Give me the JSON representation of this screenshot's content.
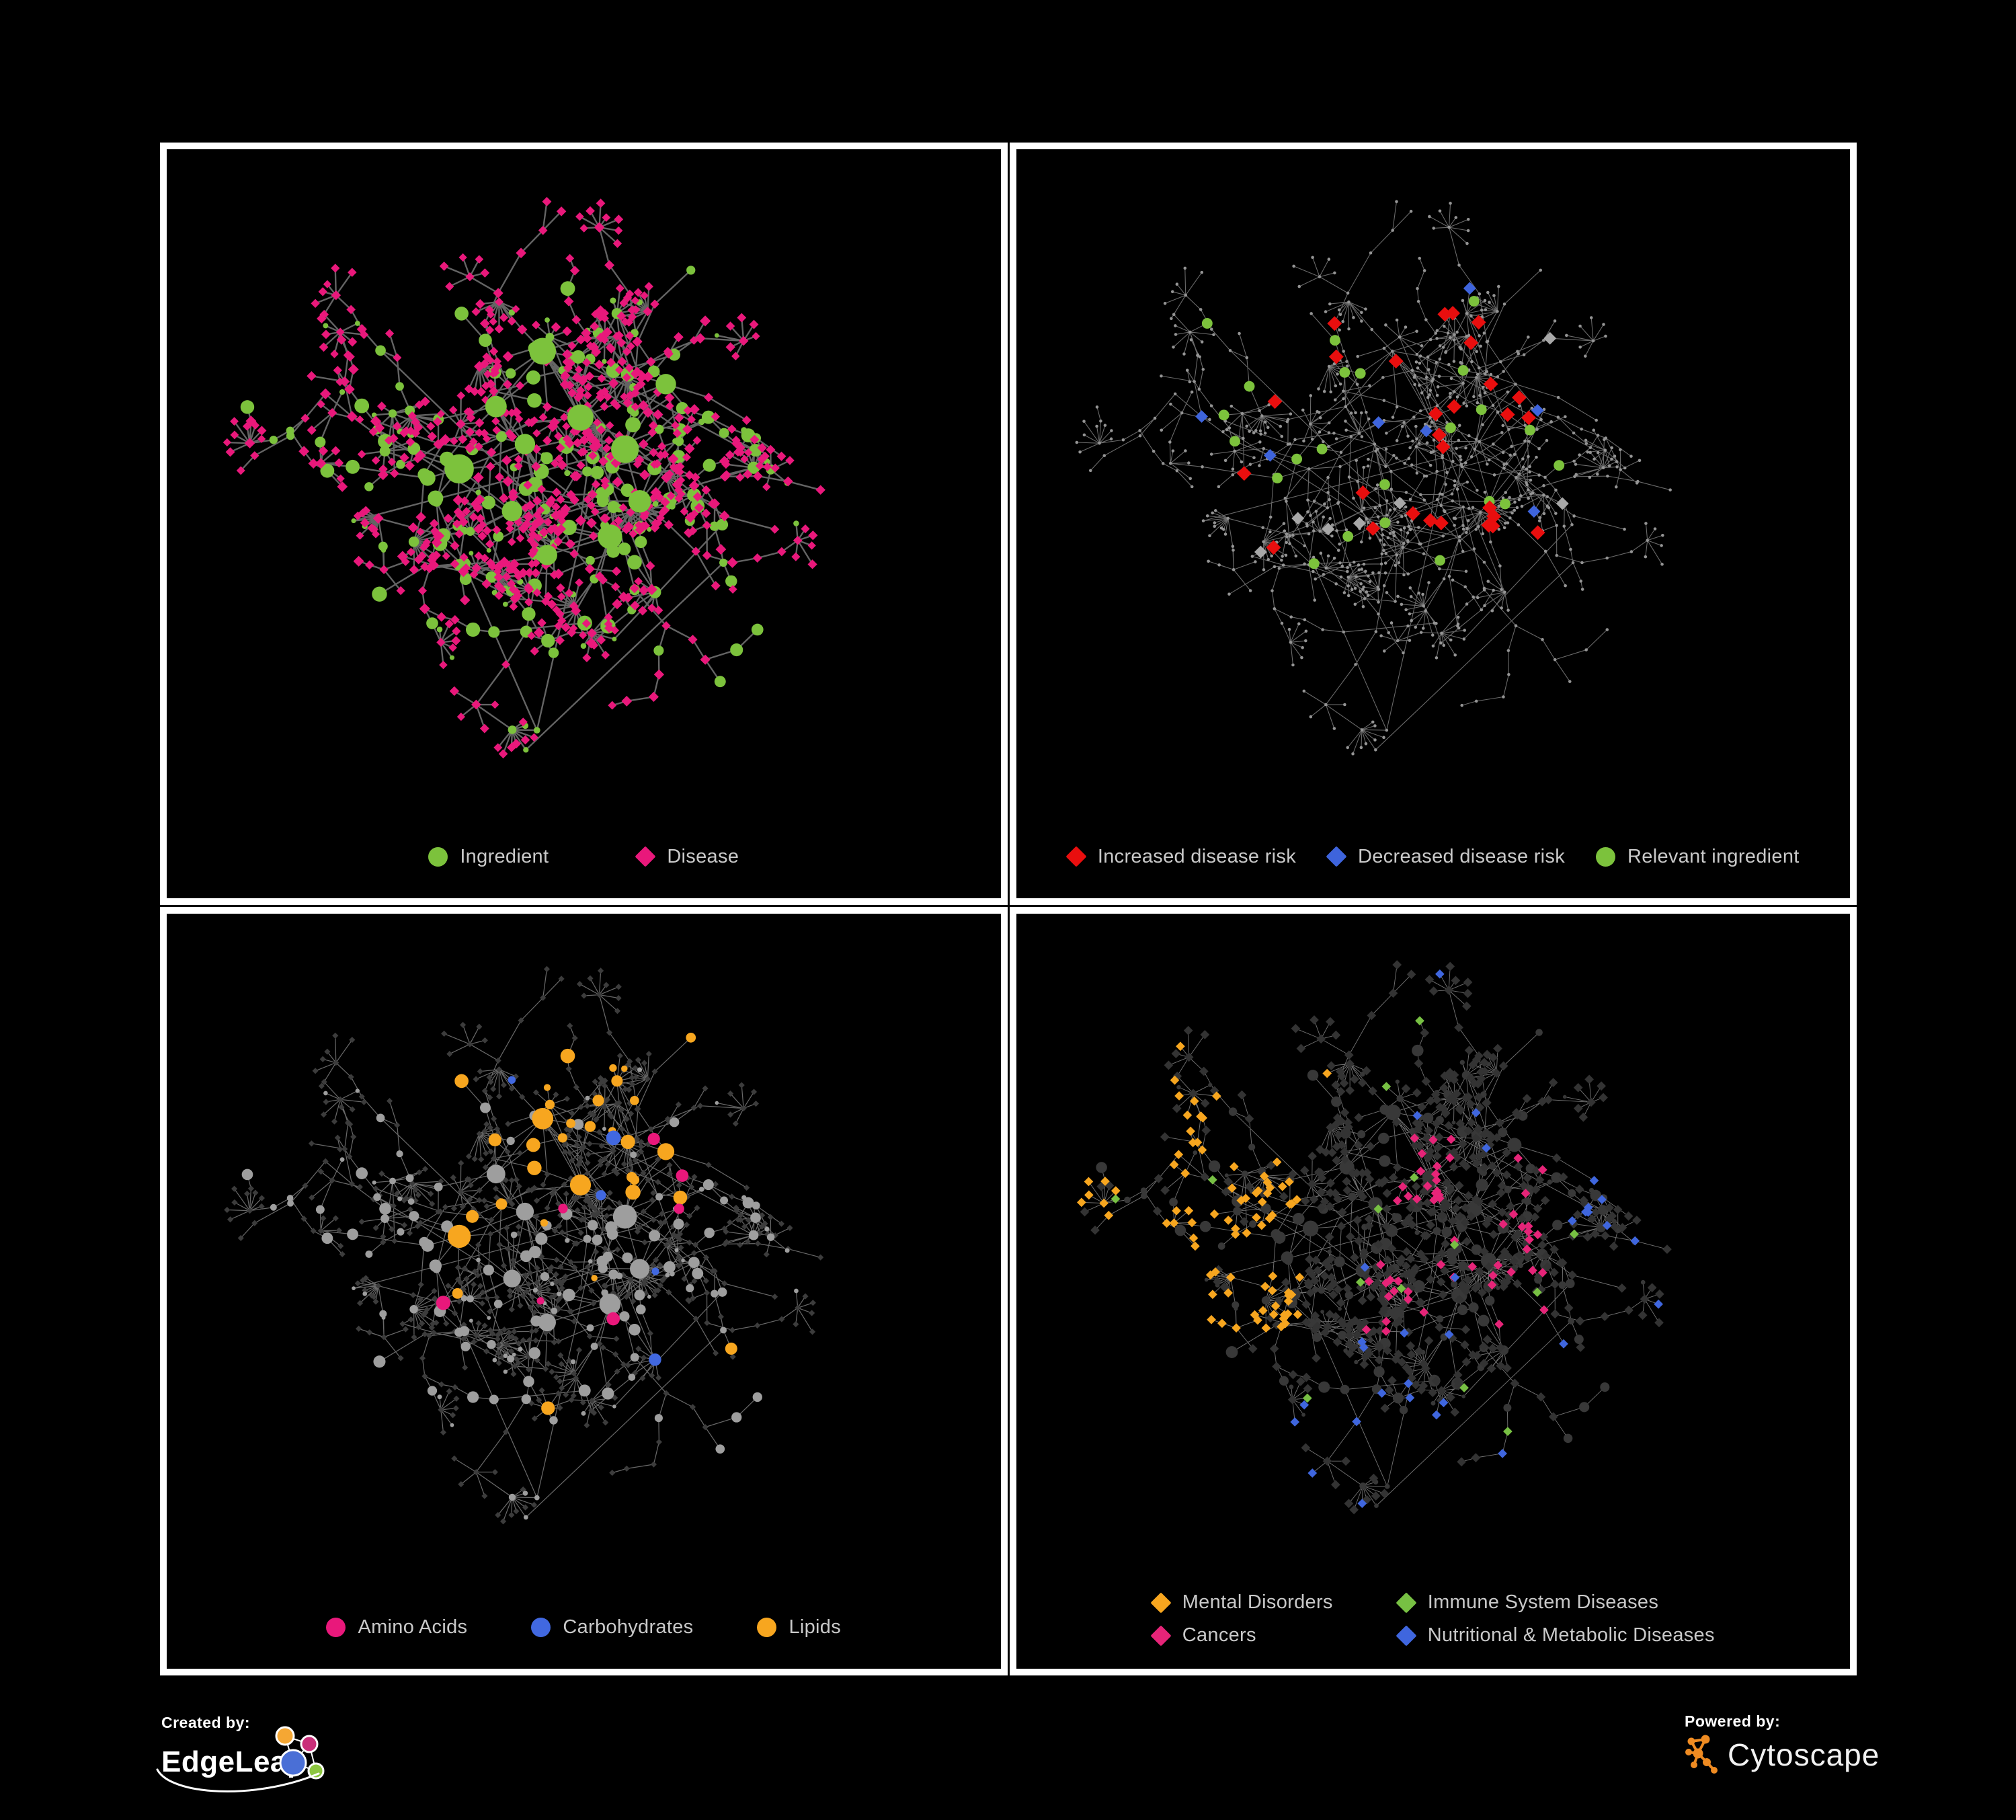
{
  "page": {
    "background": "#000000",
    "panel_border_color": "#FFFFFF",
    "legend_text_color": "#C9C9C9"
  },
  "panels": [
    {
      "id": "ingredient-disease",
      "position": "top-left",
      "type": "network",
      "legend_layout": "row-wide",
      "legend": [
        {
          "label": "Ingredient",
          "shape": "circle",
          "color": "#7CC23C"
        },
        {
          "label": "Disease",
          "shape": "diamond",
          "color": "#E9187B"
        }
      ]
    },
    {
      "id": "disease-risk",
      "position": "top-right",
      "type": "network",
      "legend_layout": "row-tight",
      "legend": [
        {
          "label": "Increased disease risk",
          "shape": "diamond",
          "color": "#E90E0E"
        },
        {
          "label": "Decreased disease risk",
          "shape": "diamond",
          "color": "#3E64DC"
        },
        {
          "label": "Relevant ingredient",
          "shape": "circle",
          "color": "#7CC23C"
        }
      ]
    },
    {
      "id": "nutrient-classes",
      "position": "bottom-left",
      "type": "network",
      "legend_layout": "row-mid",
      "legend": [
        {
          "label": "Amino Acids",
          "shape": "circle",
          "color": "#E9187B"
        },
        {
          "label": "Carbohydrates",
          "shape": "circle",
          "color": "#4168E0"
        },
        {
          "label": "Lipids",
          "shape": "circle",
          "color": "#F7A61F"
        }
      ]
    },
    {
      "id": "disease-categories",
      "position": "bottom-right",
      "type": "network",
      "legend_layout": "grid2",
      "legend": [
        {
          "label": "Mental Disorders",
          "shape": "diamond",
          "color": "#F7A61F"
        },
        {
          "label": "Immune System Diseases",
          "shape": "diamond",
          "color": "#77C043"
        },
        {
          "label": "Cancers",
          "shape": "diamond",
          "color": "#E62478"
        },
        {
          "label": "Nutritional & Metabolic Diseases",
          "shape": "diamond",
          "color": "#3F66DE"
        }
      ]
    }
  ],
  "footer": {
    "created_by": {
      "label": "Created by:",
      "brand": "EdgeLeap"
    },
    "powered_by": {
      "label": "Powered by:",
      "brand": "Cytoscape",
      "icon_color": "#EF8B22"
    }
  },
  "network_style": {
    "edge_colors": {
      "ingredient-disease": "#696969",
      "disease-risk": "#7D7D7D",
      "nutrient-classes": "#7A7A7A",
      "disease-categories": "#8E8E8E"
    },
    "node_colors": {
      "ingredient_green": "#7CC23C",
      "disease_pink": "#E9187B",
      "risk_red": "#E90E0E",
      "risk_blue": "#3E64DC",
      "risk_gray": "#A8A8A8",
      "muted_node": "#949494",
      "muted_dark_diamond": "#3C3C3C",
      "dark_circle": "#383838",
      "default_dark_diamond": "#333333",
      "gray_circle": "#9E9E9E",
      "amino_pink": "#E9187B",
      "carb_blue": "#4168E0",
      "lipid_yellow": "#F7A61F",
      "mental_orange": "#F7A61F",
      "immune_green": "#77C043",
      "cancer_pink": "#E62478",
      "nutritional_blue": "#3F66DE"
    },
    "generation": {
      "seed": 1337,
      "hub_count": 11,
      "layout_width": 1250,
      "layout_height": 1010,
      "node_budget": 950
    }
  }
}
